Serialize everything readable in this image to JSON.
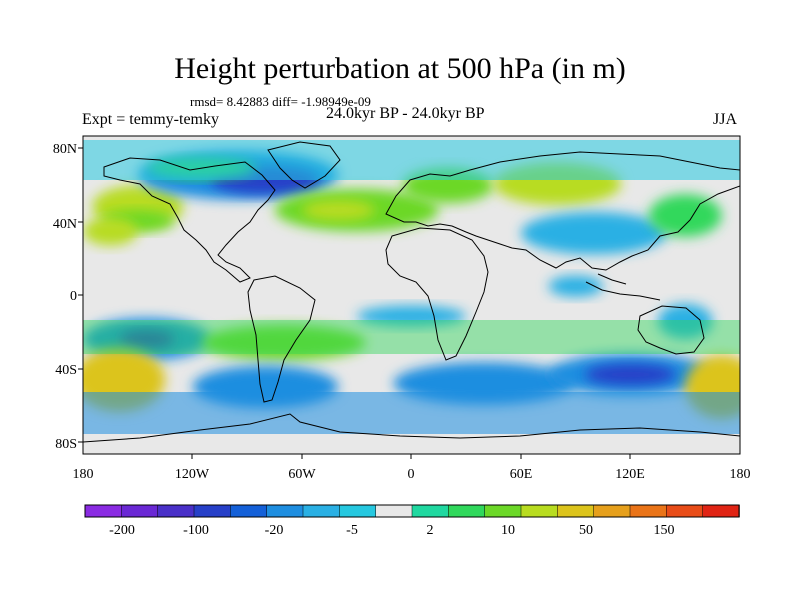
{
  "title": "Height perturbation at 500 hPa (in m)",
  "stats_line": "rmsd= 8.42883 diff= -1.98949e-09",
  "left_label": "Expt = temmy-temky",
  "center_label": "24.0kyr BP - 24.0kyr BP",
  "right_label": "JJA",
  "lat_ticks": [
    "80N",
    "40N",
    "0",
    "40S",
    "80S"
  ],
  "lon_ticks": [
    "180",
    "120W",
    "60W",
    "0",
    "60E",
    "120E",
    "180"
  ],
  "colorbar": {
    "colors": [
      "#8a2be2",
      "#6a28d4",
      "#4a30c8",
      "#2740c8",
      "#1460d8",
      "#1e8ee0",
      "#2ab0e4",
      "#26c8e0",
      "#e8e8e8",
      "#20d8a0",
      "#30d85c",
      "#6cd828",
      "#b8dc20",
      "#dcc41c",
      "#e6a01c",
      "#ea7418",
      "#e84c18",
      "#e02414"
    ],
    "labels": [
      "-200",
      "-100",
      "-20",
      "-5",
      "2",
      "10",
      "50",
      "150"
    ]
  },
  "map": {
    "background_color": "#e8e8e8",
    "anomaly_blobs": [
      {
        "lon": -150,
        "lat": 50,
        "rx": 25,
        "ry": 12,
        "level": 12
      },
      {
        "lon": -150,
        "lat": 42,
        "rx": 20,
        "ry": 6,
        "level": 11
      },
      {
        "lon": -95,
        "lat": 68,
        "rx": 55,
        "ry": 14,
        "level": 5
      },
      {
        "lon": -80,
        "lat": 65,
        "rx": 30,
        "ry": 8,
        "level": 3
      },
      {
        "lon": -30,
        "lat": 48,
        "rx": 45,
        "ry": 12,
        "level": 11
      },
      {
        "lon": -40,
        "lat": 48,
        "rx": 20,
        "ry": 6,
        "level": 12
      },
      {
        "lon": 20,
        "lat": 62,
        "rx": 25,
        "ry": 10,
        "level": 11
      },
      {
        "lon": 80,
        "lat": 63,
        "rx": 35,
        "ry": 12,
        "level": 12
      },
      {
        "lon": 100,
        "lat": 35,
        "rx": 40,
        "ry": 12,
        "level": 6
      },
      {
        "lon": 150,
        "lat": 45,
        "rx": 20,
        "ry": 12,
        "level": 10
      },
      {
        "lon": -165,
        "lat": 36,
        "rx": 15,
        "ry": 8,
        "level": 12
      },
      {
        "lon": -115,
        "lat": 72,
        "rx": 30,
        "ry": 6,
        "level": 10
      },
      {
        "lon": -145,
        "lat": -25,
        "rx": 35,
        "ry": 12,
        "level": 5
      },
      {
        "lon": -145,
        "lat": -25,
        "rx": 15,
        "ry": 5,
        "level": 3
      },
      {
        "lon": -70,
        "lat": -27,
        "rx": 45,
        "ry": 10,
        "level": 11
      },
      {
        "lon": -160,
        "lat": -48,
        "rx": 25,
        "ry": 18,
        "level": 13
      },
      {
        "lon": -80,
        "lat": -52,
        "rx": 40,
        "ry": 12,
        "level": 5
      },
      {
        "lon": 40,
        "lat": -50,
        "rx": 50,
        "ry": 12,
        "level": 5
      },
      {
        "lon": 120,
        "lat": -45,
        "rx": 45,
        "ry": 12,
        "level": 5
      },
      {
        "lon": 120,
        "lat": -45,
        "rx": 25,
        "ry": 6,
        "level": 3
      },
      {
        "lon": 170,
        "lat": -52,
        "rx": 20,
        "ry": 18,
        "level": 13
      },
      {
        "lon": 150,
        "lat": -15,
        "rx": 15,
        "ry": 10,
        "level": 6
      },
      {
        "lon": 0,
        "lat": -12,
        "rx": 30,
        "ry": 6,
        "level": 6
      },
      {
        "lon": 90,
        "lat": 5,
        "rx": 15,
        "ry": 6,
        "level": 6
      }
    ]
  }
}
